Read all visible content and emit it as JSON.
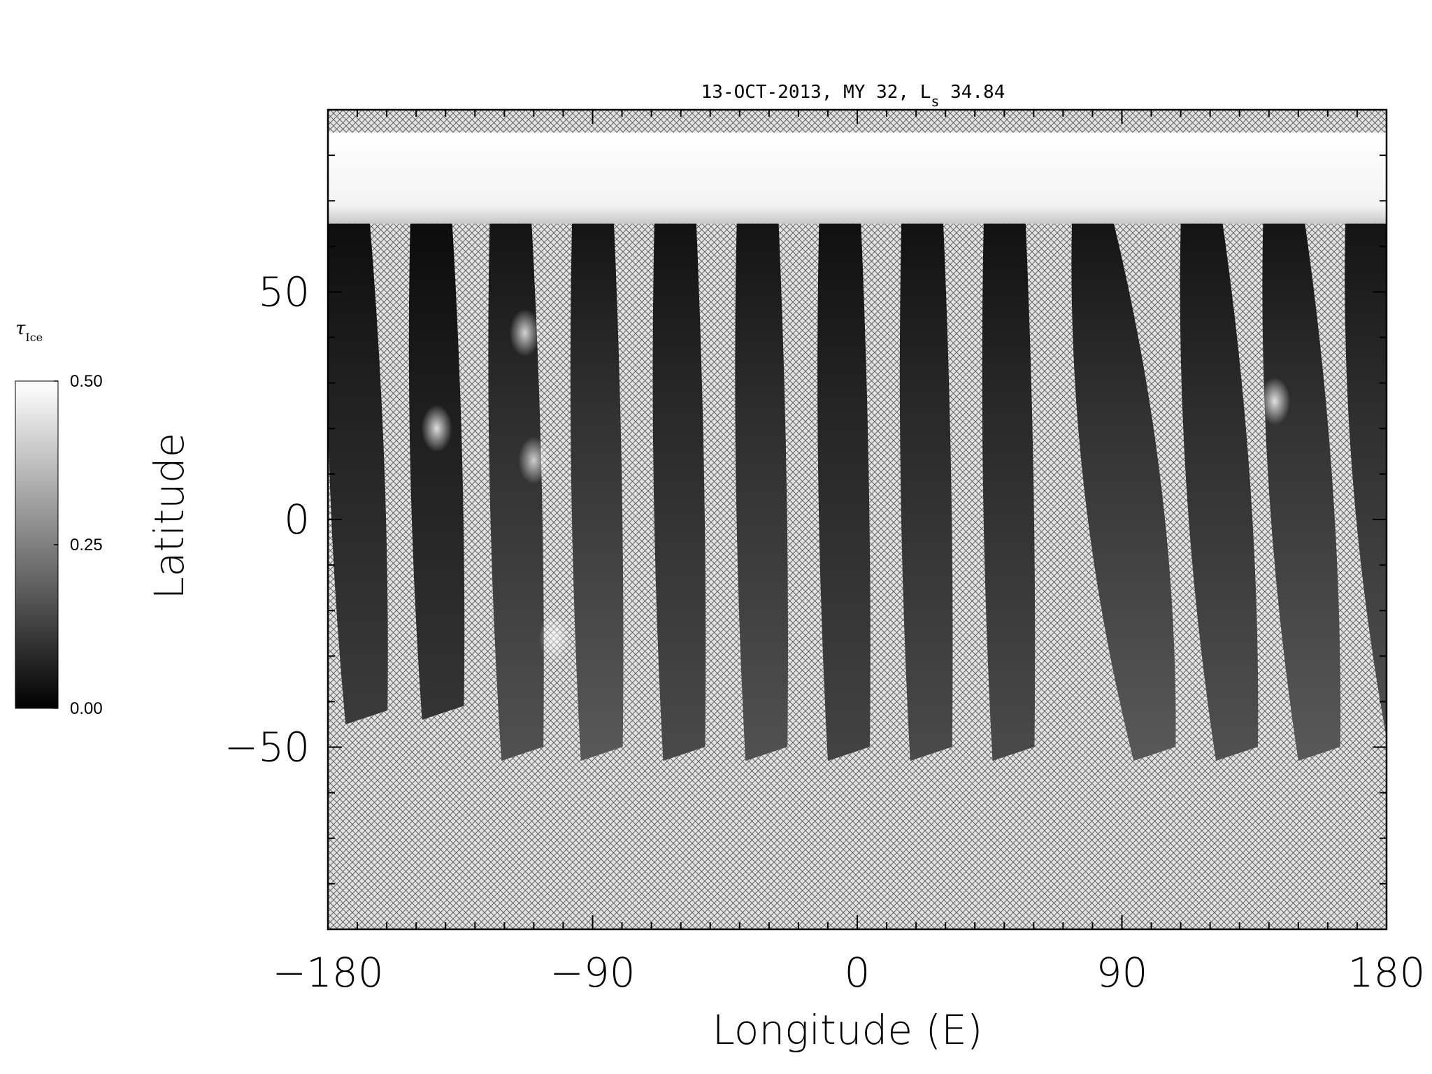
{
  "chart_data": {
    "type": "heatmap",
    "title_main": "13-OCT-2013, MY 32,  L",
    "title_sub": "s",
    "title_value": " 34.84",
    "xlabel": "Longitude (E)",
    "ylabel": "Latitude",
    "xlim": [
      -180,
      180
    ],
    "ylim": [
      -90,
      90
    ],
    "x_ticks": [
      -180,
      -90,
      0,
      90,
      180
    ],
    "x_tick_labels": [
      "−180",
      "−90",
      "0",
      "90",
      "180"
    ],
    "y_ticks": [
      -50,
      0,
      50
    ],
    "y_tick_labels": [
      "−50",
      "0",
      "50"
    ],
    "colorbar": {
      "label_main": "τ",
      "label_sub": "Ice",
      "min": 0.0,
      "max": 0.5,
      "ticks": [
        0.0,
        0.25,
        0.5
      ],
      "tick_labels": [
        "0.00",
        "0.25",
        "0.50"
      ],
      "colormap": "grayscale"
    },
    "polar_cap": {
      "lat_min": 65,
      "lat_max": 85,
      "tau": 0.49
    },
    "no_data_pattern": "crosshatch",
    "swaths": [
      {
        "lon_top": -180,
        "lon_bottom": -174,
        "lat_bottom": -45,
        "tau": 0.08
      },
      {
        "lon_top": -152,
        "lon_bottom": -148,
        "lat_bottom": -44,
        "tau": 0.07
      },
      {
        "lon_top": -125,
        "lon_bottom": -121,
        "lat_bottom": -53,
        "tau": 0.11
      },
      {
        "lon_top": -97,
        "lon_bottom": -94,
        "lat_bottom": -53,
        "tau": 0.12
      },
      {
        "lon_top": -69,
        "lon_bottom": -66,
        "lat_bottom": -53,
        "tau": 0.1
      },
      {
        "lon_top": -41,
        "lon_bottom": -38,
        "lat_bottom": -53,
        "tau": 0.11
      },
      {
        "lon_top": -13,
        "lon_bottom": -10,
        "lat_bottom": -53,
        "tau": 0.09
      },
      {
        "lon_top": 15,
        "lon_bottom": 18,
        "lat_bottom": -53,
        "tau": 0.1
      },
      {
        "lon_top": 43,
        "lon_bottom": 46,
        "lat_bottom": -53,
        "tau": 0.1
      },
      {
        "lon_top": 73,
        "lon_bottom": 94,
        "lat_bottom": -53,
        "tau": 0.12
      },
      {
        "lon_top": 110,
        "lon_bottom": 122,
        "lat_bottom": -53,
        "tau": 0.11
      },
      {
        "lon_top": 138,
        "lon_bottom": 150,
        "lat_bottom": -53,
        "tau": 0.12
      },
      {
        "lon_top": 166,
        "lon_bottom": 180,
        "lat_bottom": -48,
        "tau": 0.11
      }
    ],
    "bright_clouds": [
      {
        "lon": -143,
        "lat": 20,
        "tau": 0.45
      },
      {
        "lon": -113,
        "lat": 41,
        "tau": 0.42
      },
      {
        "lon": -110,
        "lat": 13,
        "tau": 0.4
      },
      {
        "lon": 142,
        "lat": 26,
        "tau": 0.45
      },
      {
        "lon": -103,
        "lat": -26,
        "tau": 0.32
      }
    ]
  }
}
